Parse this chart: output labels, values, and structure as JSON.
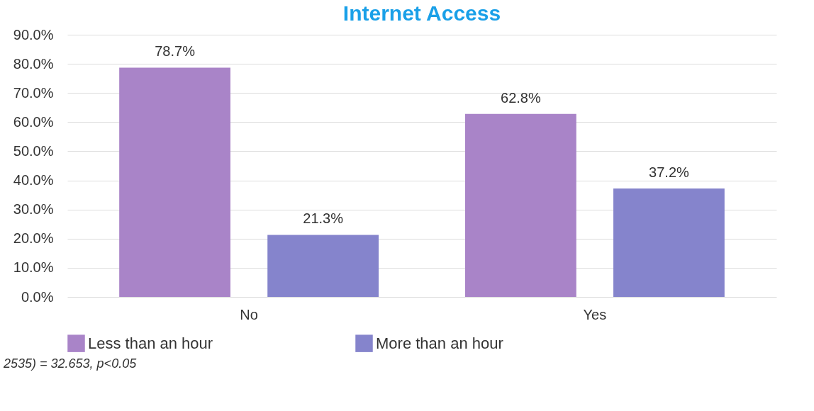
{
  "chart_data": {
    "type": "bar",
    "title": "Internet Access",
    "categories": [
      "No",
      "Yes"
    ],
    "series": [
      {
        "name": "Less than an hour",
        "color": "#a984c8",
        "values": [
          78.7,
          62.8
        ]
      },
      {
        "name": "More than an hour",
        "color": "#8584cc",
        "values": [
          21.3,
          37.2
        ]
      }
    ],
    "ylim": [
      0,
      90
    ],
    "yticks": [
      {
        "value": 0,
        "label": "0.0%"
      },
      {
        "value": 10,
        "label": "10.0%"
      },
      {
        "value": 20,
        "label": "20.0%"
      },
      {
        "value": 30,
        "label": "30.0%"
      },
      {
        "value": 40,
        "label": "40.0%"
      },
      {
        "value": 50,
        "label": "50.0%"
      },
      {
        "value": 60,
        "label": "60.0%"
      },
      {
        "value": 70,
        "label": "70.0%"
      },
      {
        "value": 80,
        "label": "80.0%"
      },
      {
        "value": 90,
        "label": "90.0%"
      }
    ],
    "value_labels": [
      [
        "78.7%",
        "62.8%"
      ],
      [
        "21.3%",
        "37.2%"
      ]
    ],
    "annotations": [
      "2535) = 32.653, p<0.05"
    ],
    "grid": "y",
    "legend": "bottom"
  }
}
